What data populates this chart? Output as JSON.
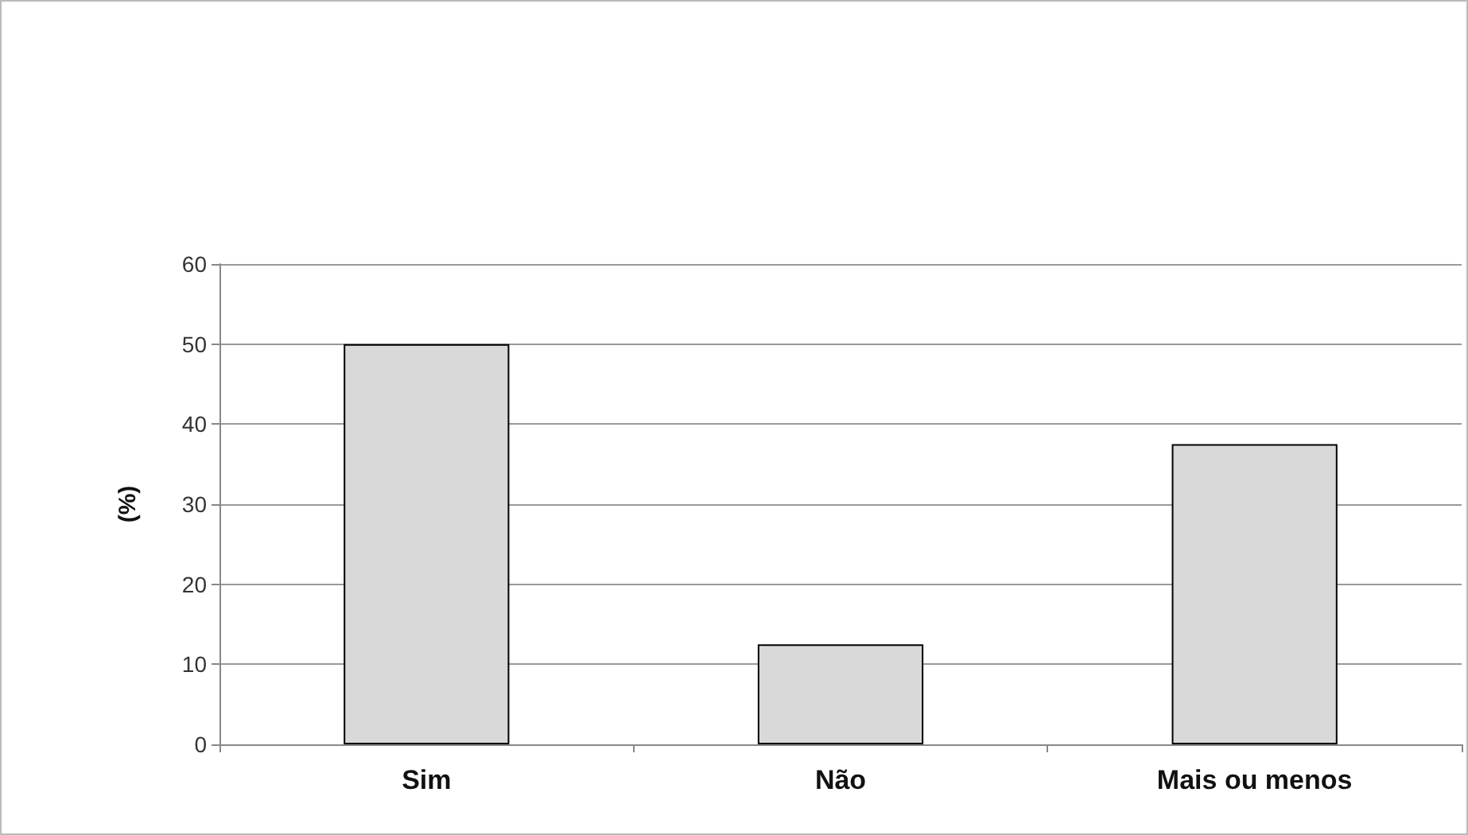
{
  "chart_data": {
    "type": "bar",
    "ylabel": "(%)",
    "categories": [
      "Sim",
      "Não",
      "Mais ou menos"
    ],
    "values": [
      50,
      12.5,
      37.5
    ],
    "color": "#d9d9d9",
    "ylim": [
      0,
      60
    ],
    "yticks": [
      0,
      10,
      20,
      30,
      40,
      50,
      60
    ],
    "grid": "y"
  }
}
